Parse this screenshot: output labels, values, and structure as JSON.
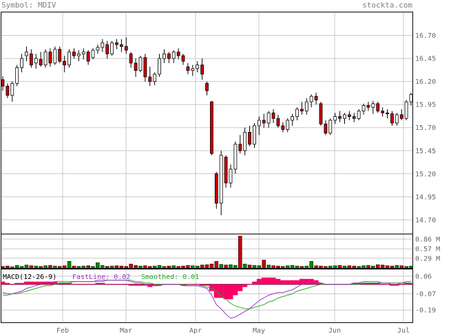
{
  "header": {
    "symbol_label": "Symbol: MDIV",
    "site": "stockta.com"
  },
  "colors": {
    "up_fill": "#ffffff",
    "down_fill": "#cc0000",
    "vol_up": "#008800",
    "vol_down": "#cc0000",
    "fast_line": "#9933cc",
    "smoothed": "#22aa22",
    "histogram": "#ff0066",
    "grid": "#c8c8c8"
  },
  "chart_data": [
    {
      "type": "candlestick",
      "name": "price",
      "yticks": [
        "16.70",
        "16.45",
        "16.20",
        "15.95",
        "15.70",
        "15.45",
        "15.20",
        "14.95",
        "14.70"
      ],
      "ylim": [
        14.55,
        16.95
      ],
      "grid": true,
      "xticks": [
        "Feb",
        "Mar",
        "Apr",
        "May",
        "Jun",
        "Jul"
      ],
      "candles": [
        [
          16.22,
          16.26,
          16.1,
          16.15
        ],
        [
          16.15,
          16.18,
          16.02,
          16.05
        ],
        [
          16.05,
          16.2,
          15.98,
          16.18
        ],
        [
          16.18,
          16.38,
          16.15,
          16.35
        ],
        [
          16.35,
          16.5,
          16.3,
          16.45
        ],
        [
          16.48,
          16.58,
          16.42,
          16.52
        ],
        [
          16.5,
          16.55,
          16.35,
          16.38
        ],
        [
          16.4,
          16.5,
          16.34,
          16.45
        ],
        [
          16.44,
          16.52,
          16.36,
          16.38
        ],
        [
          16.38,
          16.55,
          16.35,
          16.52
        ],
        [
          16.52,
          16.56,
          16.36,
          16.4
        ],
        [
          16.4,
          16.58,
          16.38,
          16.55
        ],
        [
          16.55,
          16.58,
          16.4,
          16.42
        ],
        [
          16.42,
          16.48,
          16.3,
          16.38
        ],
        [
          16.38,
          16.55,
          16.35,
          16.52
        ],
        [
          16.52,
          16.56,
          16.45,
          16.48
        ],
        [
          16.48,
          16.54,
          16.42,
          16.5
        ],
        [
          16.5,
          16.56,
          16.44,
          16.52
        ],
        [
          16.52,
          16.54,
          16.38,
          16.42
        ],
        [
          16.46,
          16.56,
          16.44,
          16.54
        ],
        [
          16.54,
          16.6,
          16.5,
          16.57
        ],
        [
          16.57,
          16.66,
          16.52,
          16.62
        ],
        [
          16.6,
          16.64,
          16.45,
          16.5
        ],
        [
          16.5,
          16.64,
          16.48,
          16.62
        ],
        [
          16.62,
          16.66,
          16.55,
          16.6
        ],
        [
          16.6,
          16.66,
          16.52,
          16.58
        ],
        [
          16.58,
          16.68,
          16.5,
          16.54
        ],
        [
          16.5,
          16.52,
          16.35,
          16.4
        ],
        [
          16.4,
          16.45,
          16.25,
          16.32
        ],
        [
          16.32,
          16.48,
          16.3,
          16.46
        ],
        [
          16.46,
          16.5,
          16.2,
          16.25
        ],
        [
          16.25,
          16.36,
          16.15,
          16.2
        ],
        [
          16.2,
          16.3,
          16.16,
          16.28
        ],
        [
          16.28,
          16.5,
          16.25,
          16.45
        ],
        [
          16.45,
          16.55,
          16.4,
          16.5
        ],
        [
          16.5,
          16.52,
          16.4,
          16.45
        ],
        [
          16.45,
          16.54,
          16.4,
          16.52
        ],
        [
          16.52,
          16.56,
          16.44,
          16.48
        ],
        [
          16.48,
          16.5,
          16.38,
          16.42
        ],
        [
          16.36,
          16.4,
          16.28,
          16.32
        ],
        [
          16.32,
          16.38,
          16.26,
          16.34
        ],
        [
          16.34,
          16.42,
          16.3,
          16.38
        ],
        [
          16.38,
          16.45,
          16.22,
          16.28
        ],
        [
          16.18,
          16.2,
          16.05,
          16.1
        ],
        [
          15.98,
          15.99,
          15.4,
          15.42
        ],
        [
          15.2,
          15.22,
          14.82,
          14.88
        ],
        [
          14.88,
          15.45,
          14.75,
          15.4
        ],
        [
          15.38,
          15.4,
          15.05,
          15.1
        ],
        [
          15.1,
          15.3,
          15.05,
          15.25
        ],
        [
          15.25,
          15.55,
          15.2,
          15.52
        ],
        [
          15.52,
          15.62,
          15.42,
          15.45
        ],
        [
          15.45,
          15.7,
          15.4,
          15.65
        ],
        [
          15.65,
          15.72,
          15.5,
          15.52
        ],
        [
          15.52,
          15.75,
          15.48,
          15.72
        ],
        [
          15.72,
          15.82,
          15.62,
          15.78
        ],
        [
          15.78,
          15.85,
          15.7,
          15.75
        ],
        [
          15.75,
          15.88,
          15.7,
          15.86
        ],
        [
          15.86,
          15.9,
          15.75,
          15.8
        ],
        [
          15.8,
          15.84,
          15.7,
          15.72
        ],
        [
          15.72,
          15.76,
          15.65,
          15.68
        ],
        [
          15.68,
          15.8,
          15.65,
          15.78
        ],
        [
          15.78,
          15.85,
          15.72,
          15.82
        ],
        [
          15.82,
          15.92,
          15.78,
          15.9
        ],
        [
          15.9,
          15.98,
          15.84,
          15.88
        ],
        [
          15.88,
          16.02,
          15.84,
          15.98
        ],
        [
          15.98,
          16.06,
          15.92,
          16.04
        ],
        [
          16.04,
          16.08,
          15.95,
          16.0
        ],
        [
          15.96,
          15.98,
          15.72,
          15.74
        ],
        [
          15.74,
          15.78,
          15.62,
          15.64
        ],
        [
          15.64,
          15.8,
          15.62,
          15.78
        ],
        [
          15.78,
          15.86,
          15.74,
          15.82
        ],
        [
          15.82,
          15.88,
          15.76,
          15.8
        ],
        [
          15.8,
          15.86,
          15.74,
          15.84
        ],
        [
          15.84,
          15.88,
          15.78,
          15.82
        ],
        [
          15.82,
          15.86,
          15.76,
          15.8
        ],
        [
          15.8,
          15.9,
          15.78,
          15.88
        ],
        [
          15.88,
          15.96,
          15.84,
          15.94
        ],
        [
          15.94,
          15.98,
          15.88,
          15.92
        ],
        [
          15.92,
          15.99,
          15.85,
          15.96
        ],
        [
          15.96,
          15.98,
          15.86,
          15.88
        ],
        [
          15.88,
          15.92,
          15.82,
          15.86
        ],
        [
          15.86,
          15.9,
          15.8,
          15.85
        ],
        [
          15.85,
          15.88,
          15.72,
          15.75
        ],
        [
          15.75,
          15.86,
          15.72,
          15.84
        ],
        [
          15.84,
          15.9,
          15.78,
          15.8
        ],
        [
          15.8,
          16.0,
          15.78,
          15.98
        ],
        [
          15.98,
          16.08,
          15.94,
          16.06
        ]
      ]
    },
    {
      "type": "bar",
      "name": "volume",
      "yticks": [
        "0.86 M",
        "0.57 M",
        "0.29 M"
      ],
      "ylim": [
        0,
        1.0
      ],
      "values_m": [
        0.05,
        0.06,
        0.04,
        0.08,
        0.05,
        0.09,
        0.07,
        0.06,
        0.05,
        0.07,
        0.08,
        0.06,
        0.05,
        0.07,
        0.2,
        0.06,
        0.05,
        0.06,
        0.07,
        0.05,
        0.16,
        0.08,
        0.05,
        0.06,
        0.07,
        0.06,
        0.05,
        0.12,
        0.08,
        0.06,
        0.07,
        0.05,
        0.06,
        0.08,
        0.05,
        0.06,
        0.07,
        0.05,
        0.06,
        0.08,
        0.07,
        0.06,
        0.09,
        0.1,
        0.12,
        0.2,
        0.11,
        0.09,
        0.1,
        0.08,
        0.95,
        0.12,
        0.09,
        0.08,
        0.07,
        0.24,
        0.09,
        0.07,
        0.06,
        0.05,
        0.07,
        0.08,
        0.06,
        0.05,
        0.06,
        0.2,
        0.07,
        0.06,
        0.05,
        0.06,
        0.07,
        0.08,
        0.06,
        0.07,
        0.06,
        0.05,
        0.07,
        0.08,
        0.06,
        0.1,
        0.09,
        0.07,
        0.06,
        0.08,
        0.07,
        0.05,
        0.06
      ]
    },
    {
      "type": "line",
      "name": "macd",
      "title": "MACD(12-26-9)",
      "fast_label": "FastLine: 0.02",
      "smoothed_label": "Smoothed: 0.01",
      "yticks": [
        "0.06",
        "-0.07",
        "-0.19"
      ],
      "ylim": [
        -0.28,
        0.11
      ],
      "fast": [
        -0.06,
        -0.07,
        -0.07,
        -0.06,
        -0.05,
        -0.03,
        -0.02,
        -0.01,
        0.0,
        0.01,
        0.01,
        0.02,
        0.02,
        0.02,
        0.02,
        0.02,
        0.02,
        0.02,
        0.02,
        0.02,
        0.03,
        0.03,
        0.03,
        0.03,
        0.03,
        0.03,
        0.03,
        0.02,
        0.01,
        0.01,
        0.0,
        -0.01,
        -0.01,
        -0.01,
        0.0,
        0.0,
        0.0,
        0.0,
        -0.01,
        -0.01,
        -0.01,
        -0.01,
        -0.02,
        -0.03,
        -0.08,
        -0.15,
        -0.18,
        -0.22,
        -0.25,
        -0.24,
        -0.22,
        -0.2,
        -0.18,
        -0.15,
        -0.12,
        -0.1,
        -0.08,
        -0.07,
        -0.06,
        -0.06,
        -0.05,
        -0.04,
        -0.02,
        0.0,
        0.01,
        0.02,
        0.02,
        0.01,
        0.0,
        0.0,
        0.0,
        0.0,
        0.0,
        0.0,
        0.01,
        0.01,
        0.02,
        0.02,
        0.02,
        0.02,
        0.01,
        0.01,
        0.0,
        0.0,
        0.01,
        0.02,
        0.02
      ],
      "smoothed": [
        -0.08,
        -0.08,
        -0.07,
        -0.07,
        -0.06,
        -0.05,
        -0.04,
        -0.03,
        -0.02,
        -0.01,
        -0.01,
        0.0,
        0.01,
        0.01,
        0.01,
        0.02,
        0.02,
        0.02,
        0.02,
        0.02,
        0.02,
        0.02,
        0.03,
        0.03,
        0.03,
        0.03,
        0.03,
        0.03,
        0.02,
        0.02,
        0.01,
        0.01,
        0.0,
        0.0,
        0.0,
        0.0,
        0.0,
        0.0,
        0.0,
        -0.01,
        -0.01,
        -0.01,
        -0.01,
        -0.02,
        -0.03,
        -0.05,
        -0.08,
        -0.11,
        -0.14,
        -0.16,
        -0.17,
        -0.18,
        -0.18,
        -0.17,
        -0.16,
        -0.15,
        -0.13,
        -0.12,
        -0.1,
        -0.09,
        -0.08,
        -0.07,
        -0.05,
        -0.04,
        -0.03,
        -0.02,
        -0.01,
        0.0,
        0.0,
        0.0,
        0.0,
        0.0,
        0.0,
        0.0,
        0.0,
        0.0,
        0.01,
        0.01,
        0.01,
        0.01,
        0.01,
        0.01,
        0.01,
        0.01,
        0.01,
        0.01,
        0.01
      ]
    }
  ]
}
